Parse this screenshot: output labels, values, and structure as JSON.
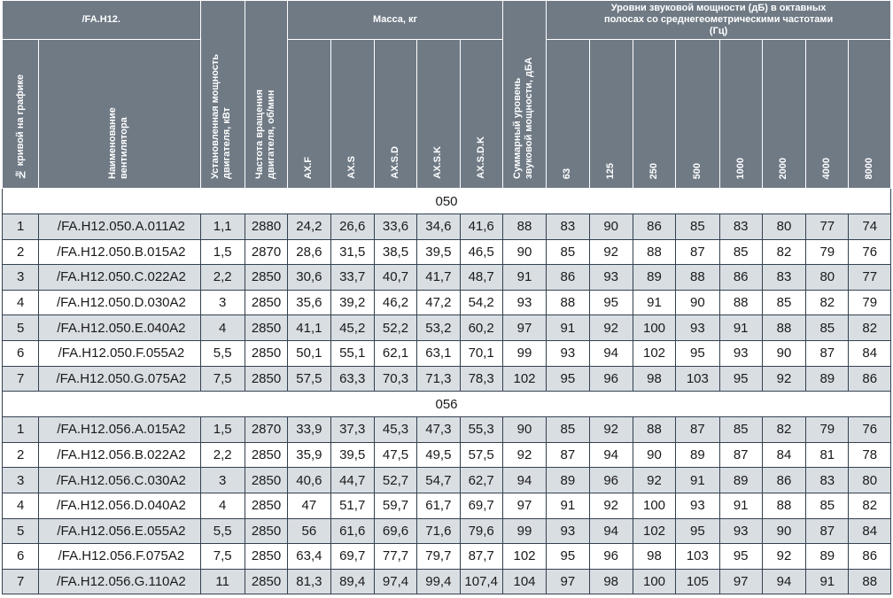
{
  "header": {
    "model_group": "/FA.H12.",
    "curve_no": "№ кривой на графике",
    "fan_name": "Наименование вентилятора",
    "motor_power": "Установленная мощность двигателя, кВт",
    "rotation_speed": "Частота вращения двигателя, об/мин",
    "mass_group": "Масса, кг",
    "mass_cols": [
      "AX.F",
      "AX.S",
      "AX.S.D",
      "AX.S.K",
      "AX.S.D.K"
    ],
    "total_sound": "Суммарный уровень звуковой мощности, дБА",
    "octave_group": "Уровни звуковой мощности (дБ) в октавных полосах со среднегеометрическими частотами (Гц)",
    "octave_cols": [
      "63",
      "125",
      "250",
      "500",
      "1000",
      "2000",
      "4000",
      "8000"
    ]
  },
  "groups": [
    {
      "label": "050",
      "rows": [
        [
          "1",
          "/FA.H12.050.A.011A2",
          "1,1",
          "2880",
          "24,2",
          "26,6",
          "33,6",
          "34,6",
          "41,6",
          "88",
          "83",
          "90",
          "86",
          "85",
          "83",
          "80",
          "77",
          "74"
        ],
        [
          "2",
          "/FA.H12.050.B.015A2",
          "1,5",
          "2870",
          "28,6",
          "31,5",
          "38,5",
          "39,5",
          "46,5",
          "90",
          "85",
          "92",
          "88",
          "87",
          "85",
          "82",
          "79",
          "76"
        ],
        [
          "3",
          "/FA.H12.050.C.022A2",
          "2,2",
          "2850",
          "30,6",
          "33,7",
          "40,7",
          "41,7",
          "48,7",
          "91",
          "86",
          "93",
          "89",
          "88",
          "86",
          "83",
          "80",
          "77"
        ],
        [
          "4",
          "/FA.H12.050.D.030A2",
          "3",
          "2850",
          "35,6",
          "39,2",
          "46,2",
          "47,2",
          "54,2",
          "93",
          "88",
          "95",
          "91",
          "90",
          "88",
          "85",
          "82",
          "79"
        ],
        [
          "5",
          "/FA.H12.050.E.040A2",
          "4",
          "2850",
          "41,1",
          "45,2",
          "52,2",
          "53,2",
          "60,2",
          "97",
          "91",
          "92",
          "100",
          "93",
          "91",
          "88",
          "85",
          "82"
        ],
        [
          "6",
          "/FA.H12.050.F.055A2",
          "5,5",
          "2850",
          "50,1",
          "55,1",
          "62,1",
          "63,1",
          "70,1",
          "99",
          "93",
          "94",
          "102",
          "95",
          "93",
          "90",
          "87",
          "84"
        ],
        [
          "7",
          "/FA.H12.050.G.075A2",
          "7,5",
          "2850",
          "57,5",
          "63,3",
          "70,3",
          "71,3",
          "78,3",
          "102",
          "95",
          "96",
          "98",
          "103",
          "95",
          "92",
          "89",
          "86"
        ]
      ]
    },
    {
      "label": "056",
      "rows": [
        [
          "1",
          "/FA.H12.056.A.015A2",
          "1,5",
          "2870",
          "33,9",
          "37,3",
          "45,3",
          "47,3",
          "55,3",
          "90",
          "85",
          "92",
          "88",
          "87",
          "85",
          "82",
          "79",
          "76"
        ],
        [
          "2",
          "/FA.H12.056.B.022A2",
          "2,2",
          "2850",
          "35,9",
          "39,5",
          "47,5",
          "49,5",
          "57,5",
          "92",
          "87",
          "94",
          "90",
          "89",
          "87",
          "84",
          "81",
          "78"
        ],
        [
          "3",
          "/FA.H12.056.C.030A2",
          "3",
          "2850",
          "40,6",
          "44,7",
          "52,7",
          "54,7",
          "62,7",
          "94",
          "89",
          "96",
          "92",
          "91",
          "89",
          "86",
          "83",
          "80"
        ],
        [
          "4",
          "/FA.H12.056.D.040A2",
          "4",
          "2850",
          "47",
          "51,7",
          "59,7",
          "61,7",
          "69,7",
          "97",
          "91",
          "92",
          "100",
          "93",
          "91",
          "88",
          "85",
          "82"
        ],
        [
          "5",
          "/FA.H12.056.E.055A2",
          "5,5",
          "2850",
          "56",
          "61,6",
          "69,6",
          "71,6",
          "79,6",
          "99",
          "93",
          "94",
          "102",
          "95",
          "93",
          "90",
          "87",
          "84"
        ],
        [
          "6",
          "/FA.H12.056.F.075A2",
          "7,5",
          "2850",
          "63,4",
          "69,7",
          "77,7",
          "79,7",
          "87,7",
          "102",
          "95",
          "96",
          "98",
          "103",
          "95",
          "92",
          "89",
          "86"
        ],
        [
          "7",
          "/FA.H12.056.G.110A2",
          "11",
          "2850",
          "81,3",
          "89,4",
          "97,4",
          "99,4",
          "107,4",
          "104",
          "97",
          "98",
          "100",
          "105",
          "97",
          "94",
          "91",
          "88"
        ]
      ]
    }
  ]
}
